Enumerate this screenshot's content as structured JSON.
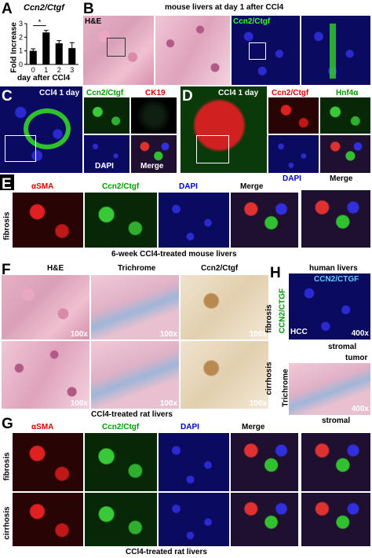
{
  "panels": {
    "A": {
      "label": "A",
      "title": "Ccn2/Ctgf",
      "ylabel": "Fold Increase",
      "xlabel": "day after CCl4",
      "sig": "*"
    },
    "B": {
      "label": "B",
      "title": "mouse livers at day 1 after CCl4",
      "he": "H&E",
      "ctgf": "Ccn2/Ctgf"
    },
    "C": {
      "label": "C",
      "title": "CCl4 1 day",
      "ctgf": "Ccn2/Ctgf",
      "ck19": "CK19",
      "dapi": "DAPI",
      "merge": "Merge"
    },
    "D": {
      "label": "D",
      "title": "CCl4 1 day",
      "ctgf": "Ccn2/Ctgf",
      "hnf": "Hnf4α",
      "dapi": "DAPI",
      "merge": "Merge"
    },
    "E": {
      "label": "E",
      "sma": "αSMA",
      "ctgf": "Ccn2/Ctgf",
      "dapi": "DAPI",
      "merge": "Merge",
      "row": "fibrosis",
      "caption": "6-week CCl4-treated mouse livers"
    },
    "F": {
      "label": "F",
      "he": "H&E",
      "tri": "Trichrome",
      "ctgf": "Ccn2/Ctgf",
      "mag": "100x",
      "caption": "CCl4-treated rat livers"
    },
    "H": {
      "label": "H",
      "title": "human livers",
      "ctgf": "CCN2/CTGF",
      "hcc": "HCC",
      "mag": "400x",
      "stromal": "stromal",
      "tumor": "tumor",
      "row1": "fibrosis",
      "row2": "cirrhosis",
      "rowlbl1": "CCN2/CTGF",
      "rowlbl2": "Trichrome"
    },
    "G": {
      "label": "G",
      "sma": "αSMA",
      "ctgf": "Ccn2/Ctgf",
      "dapi": "DAPI",
      "merge": "Merge",
      "row1": "fibrosis",
      "row2": "cirrhosis",
      "caption": "CCl4-treated rat livers"
    }
  },
  "chart_data": {
    "type": "bar",
    "title": "Ccn2/Ctgf",
    "xlabel": "day after CCl4",
    "ylabel": "Fold Increase",
    "categories": [
      "0",
      "1",
      "2",
      "3"
    ],
    "values": [
      1.0,
      2.35,
      1.55,
      1.2
    ],
    "errors": [
      0.15,
      0.15,
      0.2,
      0.4
    ],
    "ylim": [
      0,
      3
    ],
    "yticks": [
      0,
      1,
      2,
      3
    ],
    "annotation": "*",
    "bar_color": "#000000"
  }
}
